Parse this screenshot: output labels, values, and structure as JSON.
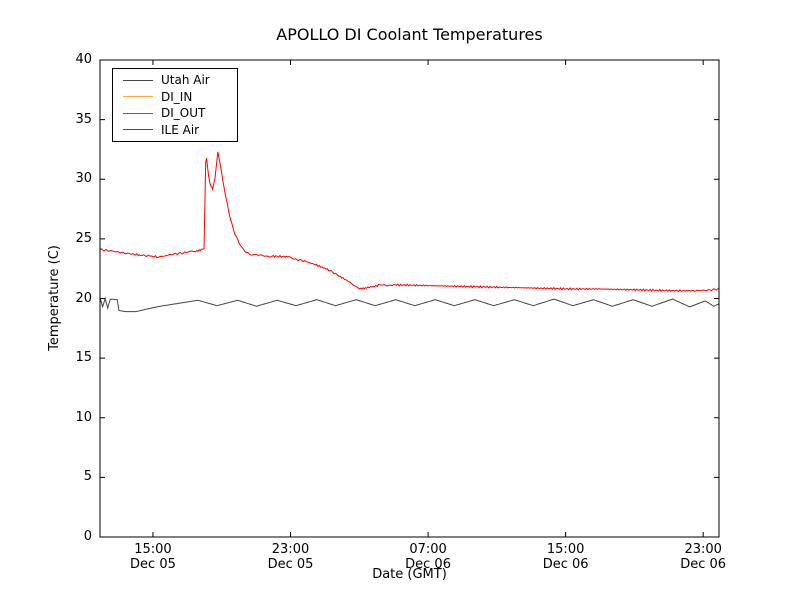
{
  "title": "APOLLO DI Coolant Temperatures",
  "axes": {
    "xlabel": "Date (GMT)",
    "ylabel": "Temperature (C)",
    "ylim": [
      0,
      40
    ],
    "xlim_hours": [
      0,
      36
    ],
    "yticks": [
      0,
      5,
      10,
      15,
      20,
      25,
      30,
      35,
      40
    ],
    "xticks": [
      {
        "h": 3.08,
        "time": "15:00",
        "date": "Dec 05"
      },
      {
        "h": 11.08,
        "time": "23:00",
        "date": "Dec 05"
      },
      {
        "h": 19.08,
        "time": "07:00",
        "date": "Dec 06"
      },
      {
        "h": 27.08,
        "time": "15:00",
        "date": "Dec 06"
      },
      {
        "h": 35.08,
        "time": "23:00",
        "date": "Dec 06"
      }
    ]
  },
  "legend": {
    "items": [
      {
        "label": "Utah Air",
        "color": "#444444"
      },
      {
        "label": "DI_IN",
        "color": "#ffab40"
      },
      {
        "label": "DI_OUT",
        "color": "#993399"
      },
      {
        "label": "ILE Air",
        "color": "#ff0000"
      }
    ]
  },
  "chart_data": {
    "type": "line",
    "title": "APOLLO DI Coolant Temperatures",
    "xlabel": "Date (GMT)",
    "ylabel": "Temperature (C)",
    "ylim": [
      0,
      40
    ],
    "x_axis_unit": "hours from ~12:00 Dec 05 GMT (plot spans ~12:00 Dec 05 to ~24:00 Dec 06)",
    "grid": false,
    "legend_position": "upper left",
    "series": [
      {
        "name": "Utah Air",
        "color": "#444444",
        "noise": false,
        "visible_in_plot": true,
        "points": [
          [
            0,
            20.1
          ],
          [
            0.15,
            19.3
          ],
          [
            0.3,
            20.0
          ],
          [
            0.45,
            19.2
          ],
          [
            0.6,
            19.95
          ],
          [
            1.0,
            19.9
          ],
          [
            1.1,
            19.0
          ],
          [
            1.5,
            18.9
          ],
          [
            2.1,
            18.9
          ],
          [
            2.7,
            19.1
          ],
          [
            3.5,
            19.35
          ],
          [
            4.6,
            19.6
          ],
          [
            5.7,
            19.85
          ],
          [
            6.8,
            19.4
          ],
          [
            8.0,
            19.85
          ],
          [
            9.1,
            19.35
          ],
          [
            10.3,
            19.85
          ],
          [
            11.4,
            19.4
          ],
          [
            12.6,
            19.9
          ],
          [
            13.7,
            19.4
          ],
          [
            14.9,
            19.9
          ],
          [
            16.0,
            19.4
          ],
          [
            17.2,
            19.9
          ],
          [
            18.3,
            19.4
          ],
          [
            19.5,
            19.9
          ],
          [
            20.6,
            19.4
          ],
          [
            21.8,
            19.9
          ],
          [
            22.9,
            19.4
          ],
          [
            24.1,
            19.9
          ],
          [
            25.2,
            19.4
          ],
          [
            26.4,
            19.95
          ],
          [
            27.5,
            19.4
          ],
          [
            28.7,
            19.9
          ],
          [
            29.8,
            19.35
          ],
          [
            31.0,
            19.9
          ],
          [
            32.1,
            19.35
          ],
          [
            33.3,
            19.95
          ],
          [
            34.3,
            19.3
          ],
          [
            35.2,
            19.8
          ],
          [
            35.7,
            19.35
          ],
          [
            36,
            19.55
          ]
        ]
      },
      {
        "name": "DI_IN",
        "color": "#ffab40",
        "noise": false,
        "visible_in_plot": false,
        "points": []
      },
      {
        "name": "DI_OUT",
        "color": "#993399",
        "noise": false,
        "visible_in_plot": false,
        "points": []
      },
      {
        "name": "ILE Air",
        "color": "#ff0000",
        "noise": true,
        "visible_in_plot": true,
        "points": [
          [
            0,
            24.1
          ],
          [
            0.3,
            24.05
          ],
          [
            0.6,
            24.0
          ],
          [
            1.5,
            23.8
          ],
          [
            2.3,
            23.65
          ],
          [
            2.9,
            23.55
          ],
          [
            3.3,
            23.5
          ],
          [
            3.8,
            23.6
          ],
          [
            4.4,
            23.75
          ],
          [
            5.0,
            23.85
          ],
          [
            5.5,
            23.95
          ],
          [
            5.9,
            24.1
          ],
          [
            6.05,
            24.2
          ],
          [
            6.1,
            28.0
          ],
          [
            6.15,
            31.4
          ],
          [
            6.2,
            31.7
          ],
          [
            6.32,
            30.2
          ],
          [
            6.45,
            29.4
          ],
          [
            6.55,
            29.2
          ],
          [
            6.7,
            30.2
          ],
          [
            6.85,
            32.3
          ],
          [
            7.0,
            31.2
          ],
          [
            7.15,
            29.8
          ],
          [
            7.35,
            28.2
          ],
          [
            7.6,
            26.6
          ],
          [
            7.85,
            25.4
          ],
          [
            8.1,
            24.6
          ],
          [
            8.4,
            24.0
          ],
          [
            8.7,
            23.7
          ],
          [
            9.2,
            23.6
          ],
          [
            10.0,
            23.55
          ],
          [
            11.0,
            23.5
          ],
          [
            11.3,
            23.3
          ],
          [
            11.9,
            23.15
          ],
          [
            12.6,
            22.8
          ],
          [
            13.3,
            22.4
          ],
          [
            13.9,
            21.9
          ],
          [
            14.6,
            21.3
          ],
          [
            15.1,
            20.85
          ],
          [
            15.5,
            20.9
          ],
          [
            16.2,
            21.1
          ],
          [
            17.0,
            21.15
          ],
          [
            18.5,
            21.1
          ],
          [
            20.0,
            21.05
          ],
          [
            21.5,
            21.0
          ],
          [
            23.0,
            20.95
          ],
          [
            24.5,
            20.9
          ],
          [
            26.0,
            20.85
          ],
          [
            27.5,
            20.8
          ],
          [
            29.0,
            20.8
          ],
          [
            30.5,
            20.75
          ],
          [
            32.0,
            20.7
          ],
          [
            33.5,
            20.65
          ],
          [
            34.5,
            20.65
          ],
          [
            35.4,
            20.7
          ],
          [
            36,
            20.8
          ]
        ]
      }
    ]
  }
}
